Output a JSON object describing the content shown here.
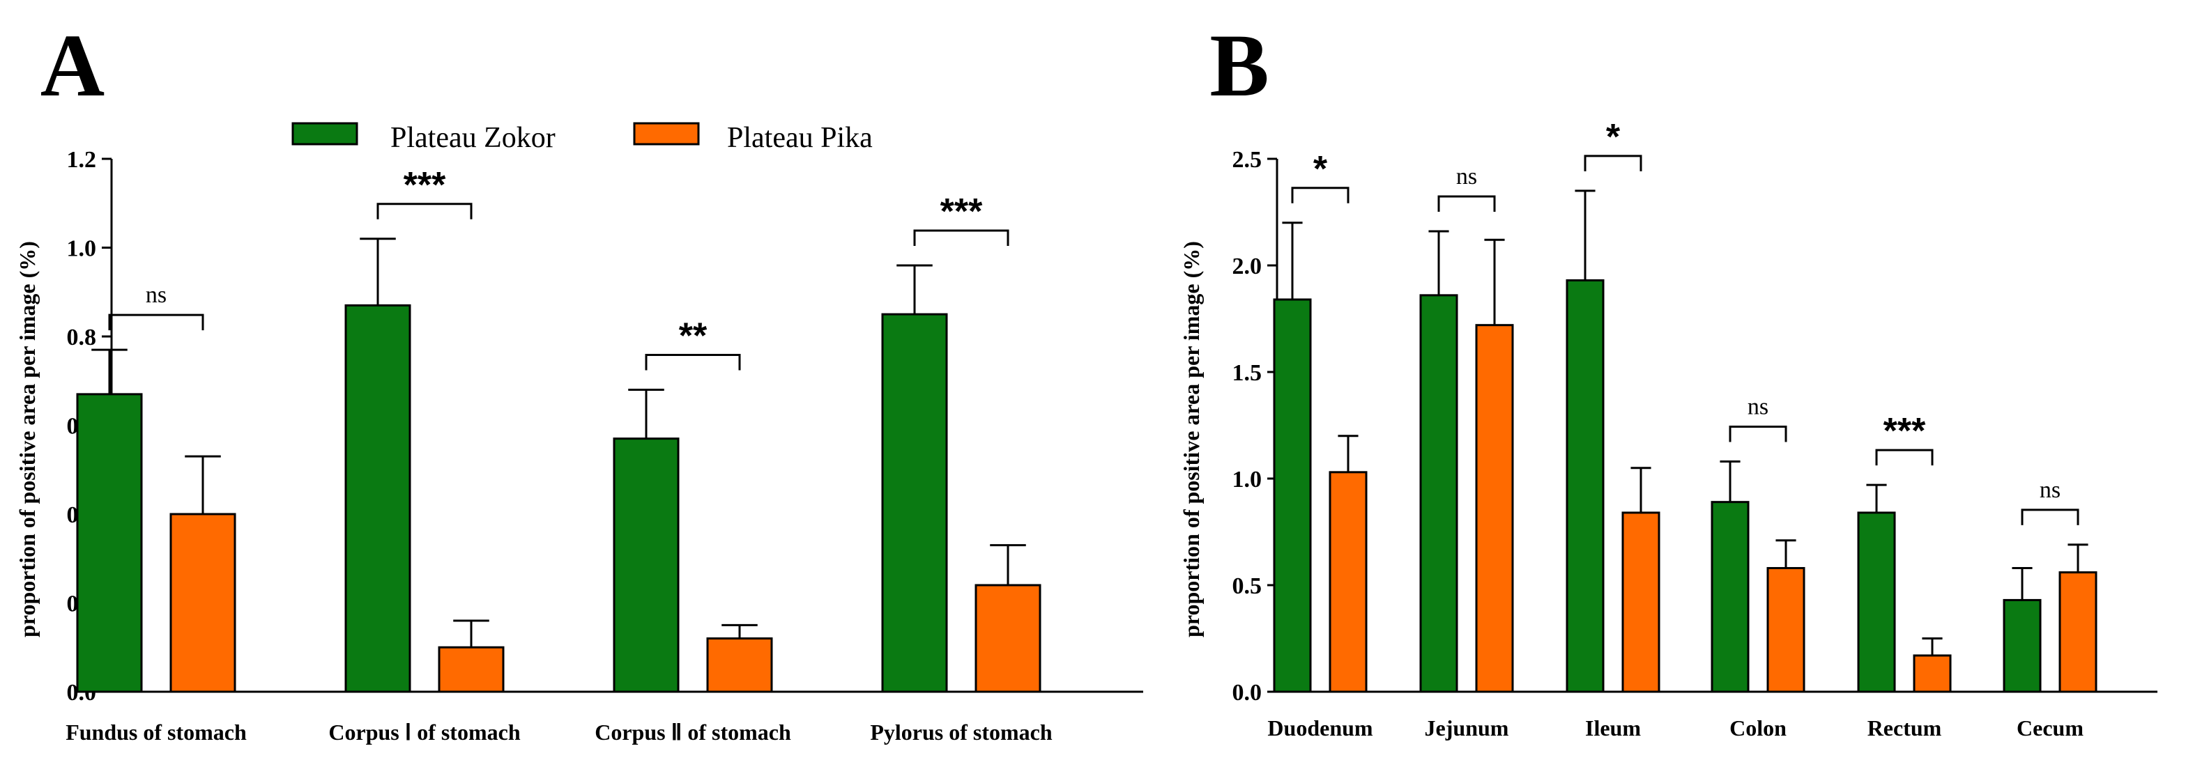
{
  "legend": {
    "items": [
      {
        "label": "Plateau Zokor",
        "color": "#0a7a12"
      },
      {
        "label": "Plateau Pika",
        "color": "#ff6a00"
      }
    ]
  },
  "chart_data": [
    {
      "panel_label": "A",
      "type": "bar",
      "ylabel": "proportion of positive area per image (%)",
      "ylim": [
        0,
        1.2
      ],
      "yticks": [
        "0.0",
        "0.2",
        "0.4",
        "0.6",
        "0.8",
        "1.0",
        "1.2"
      ],
      "categories": [
        "Fundus of stomach",
        "Corpus Ⅰ of stomach",
        "Corpus Ⅱ of stomach",
        "Pylorus of stomach"
      ],
      "series": [
        {
          "name": "Plateau Zokor",
          "values": [
            0.67,
            0.87,
            0.57,
            0.85
          ],
          "errors": [
            0.1,
            0.15,
            0.11,
            0.11
          ]
        },
        {
          "name": "Plateau Pika",
          "values": [
            0.4,
            0.1,
            0.12,
            0.24
          ],
          "errors": [
            0.13,
            0.06,
            0.03,
            0.09
          ]
        }
      ],
      "significance": [
        "ns",
        "***",
        "**",
        "***"
      ]
    },
    {
      "panel_label": "B",
      "type": "bar",
      "ylabel": "proportion of positive area per image (%)",
      "ylim": [
        0,
        2.5
      ],
      "yticks": [
        "0.0",
        "0.5",
        "1.0",
        "1.5",
        "2.0",
        "2.5"
      ],
      "categories": [
        "Duodenum",
        "Jejunum",
        "Ileum",
        "Colon",
        "Rectum",
        "Cecum"
      ],
      "series": [
        {
          "name": "Plateau Zokor",
          "values": [
            1.84,
            1.86,
            1.93,
            0.89,
            0.84,
            0.43
          ],
          "errors": [
            0.36,
            0.3,
            0.42,
            0.19,
            0.13,
            0.15
          ]
        },
        {
          "name": "Plateau Pika",
          "values": [
            1.03,
            1.72,
            0.84,
            0.58,
            0.17,
            0.56
          ],
          "errors": [
            0.17,
            0.4,
            0.21,
            0.13,
            0.08,
            0.13
          ]
        }
      ],
      "significance": [
        "*",
        "ns",
        "*",
        "ns",
        "***",
        "ns"
      ]
    }
  ]
}
